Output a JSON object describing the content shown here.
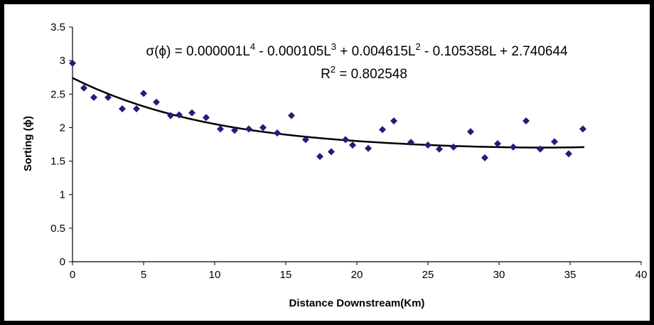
{
  "chart_data": {
    "type": "scatter",
    "title": "",
    "xlabel": "Distance Downstream(Km)",
    "ylabel": "Sorting (ϕ)",
    "xlim": [
      0,
      40
    ],
    "ylim": [
      0,
      3.5
    ],
    "xticks": [
      0,
      5,
      10,
      15,
      20,
      25,
      30,
      35,
      40
    ],
    "yticks": [
      0,
      0.5,
      1,
      1.5,
      2,
      2.5,
      3,
      3.5
    ],
    "grid": false,
    "legend": "none",
    "colors": {
      "points": "#1f1f7a",
      "trend": "#000000"
    },
    "series": [
      {
        "x": [
          0,
          0.8,
          1.5,
          2.5,
          3.5,
          4.5,
          5,
          5.9,
          6.9,
          7.5,
          8.4,
          9.4,
          10.4,
          11.4,
          12.4,
          13.4,
          14.4,
          15.4,
          16.4,
          17.4,
          18.2,
          19.2,
          19.7,
          20.8,
          21.8,
          22.6,
          23.8,
          25,
          25.8,
          26.8,
          28,
          29,
          29.9,
          31,
          31.9,
          32.9,
          33.9,
          34.9,
          35.9
        ],
        "y": [
          2.96,
          2.59,
          2.45,
          2.45,
          2.28,
          2.28,
          2.51,
          2.38,
          2.18,
          2.19,
          2.22,
          2.15,
          1.98,
          1.96,
          1.98,
          2.0,
          1.92,
          2.18,
          1.82,
          1.57,
          1.64,
          1.82,
          1.74,
          1.69,
          1.97,
          2.1,
          1.78,
          1.74,
          1.68,
          1.71,
          1.94,
          1.55,
          1.76,
          1.71,
          2.1,
          1.68,
          1.79,
          1.61,
          1.98
        ]
      }
    ],
    "trendline": {
      "type": "polynomial",
      "coefficients": [
        1e-06,
        -0.000105,
        0.004615,
        -0.105358,
        2.740644
      ],
      "x_range": [
        0,
        36
      ]
    },
    "annotations": {
      "equation_prefix": "σ(ϕ) = 0.000001L",
      "exp4": "4",
      "equation_mid1": " - 0.000105L",
      "exp3": "3",
      "equation_mid2": " + 0.004615L",
      "exp2": "2",
      "equation_suffix": " - 0.105358L + 2.740644",
      "r2_prefix": "R",
      "r2_exp": "2",
      "r2_suffix": " = 0.802548"
    }
  }
}
